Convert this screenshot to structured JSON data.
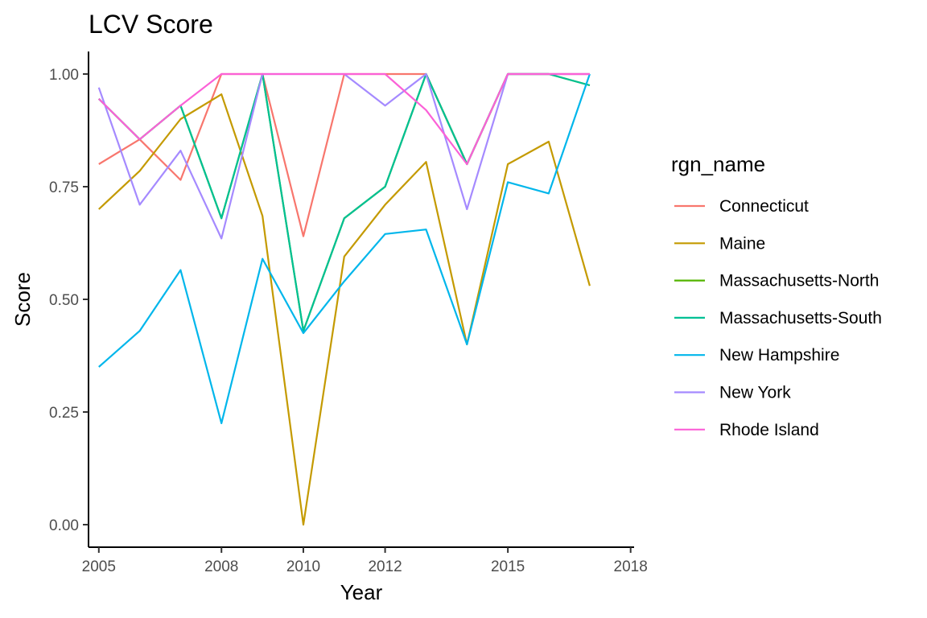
{
  "chart_data": {
    "type": "line",
    "title": "LCV Score",
    "xlabel": "Year",
    "ylabel": "Score",
    "xlim": [
      "2004-10-01",
      "2018-02-01"
    ],
    "ylim": [
      -0.05,
      1.05
    ],
    "x_ticks": [
      "2005",
      "2008",
      "2010",
      "2012",
      "2015",
      "2018"
    ],
    "y_ticks": [
      "0.00",
      "0.25",
      "0.50",
      "0.75",
      "1.00"
    ],
    "grid": false,
    "legend": {
      "title": "rgn_name",
      "position": "right"
    },
    "x": [
      "2005-01-01",
      "2006-01-01",
      "2007-01-01",
      "2008-01-01",
      "2009-01-01",
      "2010-01-01",
      "2011-01-01",
      "2012-01-01",
      "2013-01-01",
      "2014-01-01",
      "2015-01-01",
      "2016-01-01",
      "2017-01-01"
    ],
    "series": [
      {
        "name": "Connecticut",
        "color": "#F8766D",
        "values": [
          0.8,
          0.855,
          0.765,
          1.0,
          1.0,
          0.64,
          1.0,
          1.0,
          1.0,
          0.8,
          1.0,
          1.0,
          1.0
        ]
      },
      {
        "name": "Maine",
        "color": "#C49A00",
        "values": [
          0.7,
          0.785,
          0.9,
          0.955,
          0.685,
          0.0,
          0.595,
          0.71,
          0.805,
          0.4,
          0.8,
          0.85,
          0.53
        ]
      },
      {
        "name": "Massachusetts-North",
        "color": "#53B400",
        "values": [
          0.945,
          0.855,
          0.93,
          0.68,
          1.0,
          0.43,
          0.68,
          0.75,
          1.0,
          0.8,
          1.0,
          1.0,
          0.975
        ]
      },
      {
        "name": "Massachusetts-South",
        "color": "#00C094",
        "values": [
          0.945,
          0.855,
          0.93,
          0.68,
          1.0,
          0.43,
          0.68,
          0.75,
          1.0,
          0.8,
          1.0,
          1.0,
          0.975
        ]
      },
      {
        "name": "New Hampshire",
        "color": "#00B6EB",
        "values": [
          0.35,
          0.43,
          0.565,
          0.225,
          0.59,
          0.425,
          0.54,
          0.645,
          0.655,
          0.4,
          0.76,
          0.735,
          1.0
        ]
      },
      {
        "name": "New York",
        "color": "#A58AFF",
        "values": [
          0.97,
          0.71,
          0.83,
          0.635,
          1.0,
          1.0,
          1.0,
          0.93,
          1.0,
          0.7,
          1.0,
          1.0,
          1.0
        ]
      },
      {
        "name": "Rhode Island",
        "color": "#FB61D7",
        "values": [
          0.945,
          0.855,
          0.93,
          1.0,
          1.0,
          1.0,
          1.0,
          1.0,
          0.92,
          0.8,
          1.0,
          1.0,
          1.0
        ]
      }
    ]
  }
}
